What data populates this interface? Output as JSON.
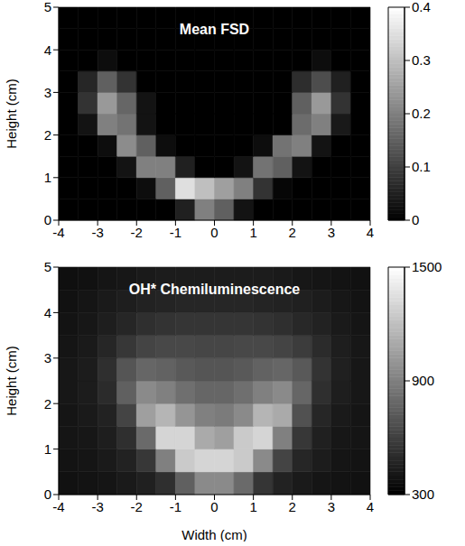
{
  "chart_data": [
    {
      "type": "heatmap",
      "title": "Mean FSD",
      "ylabel": "Height (cm)",
      "xlim": [
        -4,
        4
      ],
      "xticks": [
        -4,
        -3,
        -2,
        -1,
        0,
        1,
        2,
        3,
        4
      ],
      "ylim": [
        0,
        5
      ],
      "yticks": [
        0,
        1,
        2,
        3,
        4,
        5
      ],
      "x_bins": [
        -4,
        -3.5,
        -3,
        -2.5,
        -2,
        -1.5,
        -1,
        -0.5,
        0,
        0.5,
        1,
        1.5,
        2,
        2.5,
        3,
        3.5,
        4
      ],
      "y_bins": [
        0,
        0.5,
        1,
        1.5,
        2,
        2.5,
        3,
        3.5,
        4,
        4.5,
        5
      ],
      "cells": [
        [
          0,
          0,
          0,
          0,
          0,
          0,
          0.05,
          0.2,
          0.15,
          0.03,
          0,
          0,
          0,
          0,
          0,
          0
        ],
        [
          0,
          0,
          0,
          0,
          0.02,
          0.15,
          0.35,
          0.3,
          0.25,
          0.2,
          0.08,
          0.01,
          0,
          0,
          0,
          0
        ],
        [
          0,
          0,
          0,
          0.03,
          0.2,
          0.2,
          0.05,
          0,
          0,
          0.03,
          0.18,
          0.15,
          0.03,
          0,
          0,
          0
        ],
        [
          0,
          0,
          0.02,
          0.22,
          0.15,
          0.02,
          0,
          0,
          0,
          0,
          0.02,
          0.18,
          0.2,
          0.03,
          0,
          0
        ],
        [
          0,
          0.03,
          0.2,
          0.18,
          0.03,
          0,
          0,
          0,
          0,
          0,
          0,
          0,
          0.17,
          0.2,
          0.04,
          0
        ],
        [
          0,
          0.08,
          0.24,
          0.16,
          0.03,
          0,
          0,
          0,
          0,
          0,
          0,
          0,
          0.15,
          0.24,
          0.08,
          0
        ],
        [
          0,
          0.06,
          0.15,
          0.08,
          0,
          0,
          0,
          0,
          0,
          0,
          0,
          0,
          0.07,
          0.12,
          0.05,
          0
        ],
        [
          0,
          0,
          0.02,
          0,
          0,
          0,
          0,
          0,
          0,
          0,
          0,
          0,
          0,
          0.02,
          0,
          0
        ],
        [
          0,
          0,
          0,
          0,
          0,
          0,
          0,
          0,
          0,
          0,
          0,
          0,
          0,
          0,
          0,
          0
        ],
        [
          0,
          0,
          0,
          0,
          0,
          0,
          0,
          0,
          0,
          0,
          0,
          0,
          0,
          0,
          0,
          0
        ]
      ],
      "colorbar": {
        "range": [
          0,
          0.4
        ],
        "ticks": [
          0,
          0.1,
          0.2,
          0.3,
          0.4
        ]
      }
    },
    {
      "type": "heatmap",
      "title": "OH* Chemiluminescence",
      "xlabel": "Width (cm)",
      "ylabel": "Height (cm)",
      "xlim": [
        -4,
        4
      ],
      "xticks": [
        -4,
        -3,
        -2,
        -1,
        0,
        1,
        2,
        3,
        4
      ],
      "ylim": [
        0,
        5
      ],
      "yticks": [
        0,
        1,
        2,
        3,
        4,
        5
      ],
      "x_bins": [
        -4,
        -3.5,
        -3,
        -2.5,
        -2,
        -1.5,
        -1,
        -0.5,
        0,
        0.5,
        1,
        1.5,
        2,
        2.5,
        3,
        3.5,
        4
      ],
      "y_bins": [
        0,
        0.5,
        1,
        1.5,
        2,
        2.5,
        3,
        3.5,
        4,
        4.5,
        5
      ],
      "cells": [
        [
          380,
          390,
          400,
          420,
          450,
          520,
          750,
          950,
          950,
          800,
          550,
          460,
          420,
          400,
          390,
          380
        ],
        [
          390,
          400,
          420,
          460,
          560,
          900,
          1250,
          1300,
          1300,
          1250,
          950,
          620,
          480,
          430,
          400,
          390
        ],
        [
          400,
          410,
          440,
          520,
          800,
          1300,
          1300,
          1100,
          1050,
          1250,
          1300,
          900,
          560,
          450,
          410,
          400
        ],
        [
          400,
          420,
          460,
          620,
          1050,
          1150,
          1000,
          900,
          880,
          950,
          1150,
          1100,
          680,
          480,
          420,
          400
        ],
        [
          410,
          430,
          500,
          750,
          950,
          900,
          820,
          780,
          780,
          820,
          900,
          950,
          780,
          520,
          440,
          410
        ],
        [
          410,
          430,
          520,
          700,
          780,
          760,
          720,
          700,
          700,
          720,
          760,
          780,
          720,
          540,
          450,
          410
        ],
        [
          400,
          420,
          480,
          560,
          620,
          640,
          640,
          630,
          630,
          640,
          640,
          620,
          580,
          500,
          440,
          410
        ],
        [
          390,
          410,
          440,
          480,
          520,
          540,
          550,
          550,
          550,
          550,
          540,
          520,
          490,
          460,
          420,
          400
        ],
        [
          380,
          400,
          420,
          440,
          460,
          470,
          480,
          480,
          480,
          480,
          470,
          460,
          450,
          430,
          410,
          390
        ],
        [
          370,
          380,
          400,
          410,
          420,
          430,
          430,
          430,
          430,
          430,
          430,
          420,
          410,
          400,
          390,
          380
        ]
      ],
      "colorbar": {
        "range": [
          300,
          1500
        ],
        "ticks": [
          300,
          900,
          1500
        ]
      }
    }
  ]
}
